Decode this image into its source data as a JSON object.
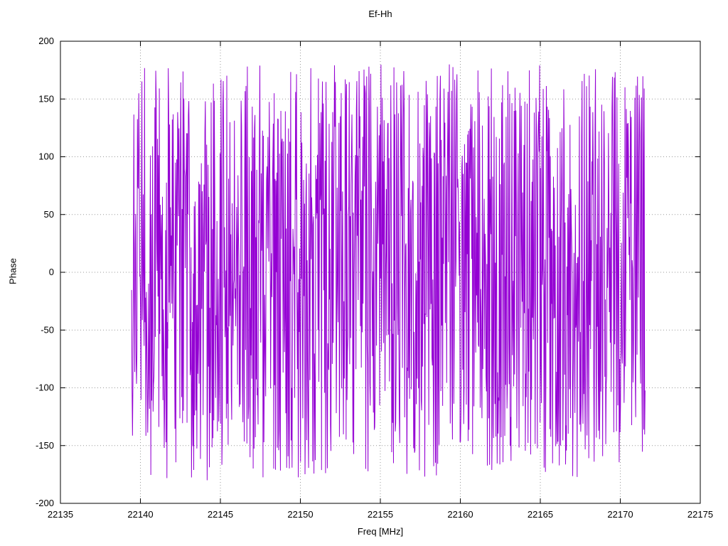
{
  "page": {
    "background": "#ffffff"
  },
  "chart_data": {
    "type": "line",
    "title": "Ef-Hh",
    "xlabel": "Freq [MHz]",
    "ylabel": "Phase",
    "xlim": [
      22135,
      22175
    ],
    "ylim": [
      -200,
      200
    ],
    "x_ticks": [
      22135,
      22140,
      22145,
      22150,
      22155,
      22160,
      22165,
      22170,
      22175
    ],
    "y_ticks": [
      -200,
      -150,
      -100,
      -50,
      0,
      50,
      100,
      150,
      200
    ],
    "grid": true,
    "grid_style": "dotted",
    "grid_color": "#999999",
    "axis_color": "#000000",
    "legend_position": "none",
    "series": [
      {
        "name": "Ef-Hh",
        "color": "#9400d3",
        "x_start": 22139.45,
        "x_end": 22171.55,
        "n_points": 1150,
        "y_min": -180,
        "y_max": 180,
        "pattern": "wrapped-random-phase",
        "seed": 1234,
        "description": "Dense noise-like phase trace wrapped to +/-180 degrees spanning 22139.45-22171.55 MHz; values fill nearly the full -180..180 range with rapid vertical excursions"
      }
    ]
  }
}
